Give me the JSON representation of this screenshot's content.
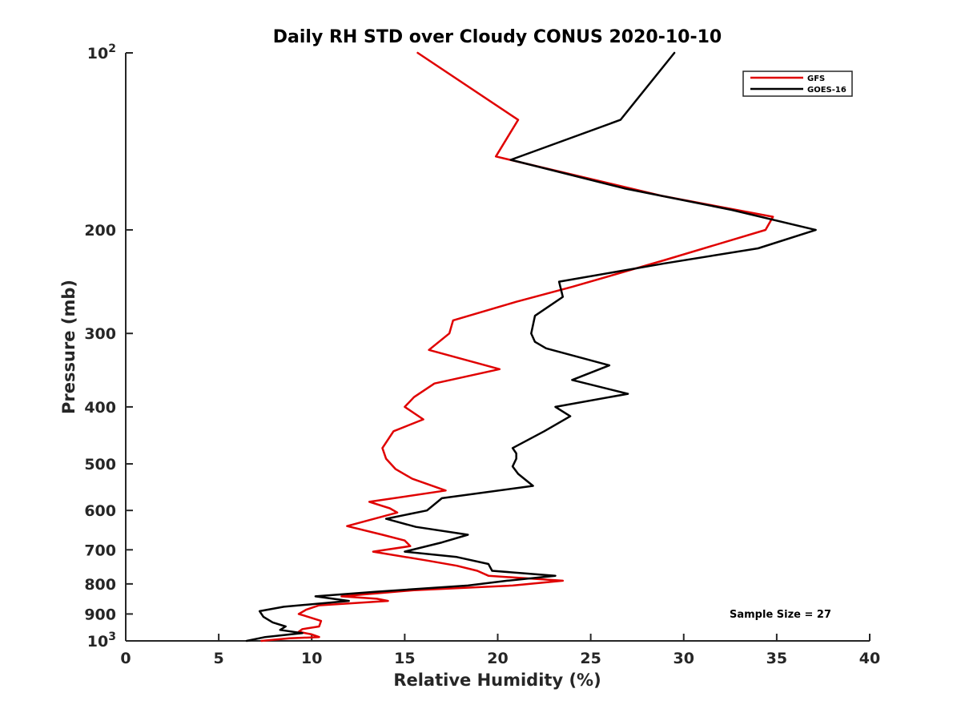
{
  "chart_data": {
    "type": "line",
    "title": "Daily RH STD over Cloudy CONUS 2020-10-10",
    "xlabel": "Relative Humidity (%)",
    "ylabel": "Pressure (mb)",
    "xlim": [
      0,
      40
    ],
    "ylim": [
      100,
      1000
    ],
    "y_scale": "log",
    "y_reversed": true,
    "grid": false,
    "legend_position": "top-right",
    "x_ticks": [
      "0",
      "5",
      "10",
      "15",
      "20",
      "25",
      "30",
      "35",
      "40"
    ],
    "y_ticks": [
      {
        "value": 100,
        "base": "10",
        "exp": "2"
      },
      {
        "value": 200,
        "label": "200"
      },
      {
        "value": 300,
        "label": "300"
      },
      {
        "value": 400,
        "label": "400"
      },
      {
        "value": 500,
        "label": "500"
      },
      {
        "value": 600,
        "label": "600"
      },
      {
        "value": 700,
        "label": "700"
      },
      {
        "value": 800,
        "label": "800"
      },
      {
        "value": 900,
        "label": "900"
      },
      {
        "value": 1000,
        "base": "10",
        "exp": "3"
      }
    ],
    "annotation": "Sample Size = 27",
    "series": [
      {
        "name": "GFS",
        "color": "#e00000",
        "points": [
          [
            15.7,
            100
          ],
          [
            21.1,
            130
          ],
          [
            19.9,
            150
          ],
          [
            28.8,
            175
          ],
          [
            34.8,
            190
          ],
          [
            34.4,
            200
          ],
          [
            29.0,
            225
          ],
          [
            24.0,
            250
          ],
          [
            21.0,
            265
          ],
          [
            17.6,
            285
          ],
          [
            17.4,
            300
          ],
          [
            16.3,
            320
          ],
          [
            20.1,
            345
          ],
          [
            16.6,
            365
          ],
          [
            15.5,
            385
          ],
          [
            15.0,
            400
          ],
          [
            16.0,
            420
          ],
          [
            14.4,
            440
          ],
          [
            13.8,
            470
          ],
          [
            14.0,
            490
          ],
          [
            14.5,
            510
          ],
          [
            15.4,
            530
          ],
          [
            17.2,
            555
          ],
          [
            13.1,
            580
          ],
          [
            14.2,
            595
          ],
          [
            14.6,
            605
          ],
          [
            11.9,
            638
          ],
          [
            13.8,
            660
          ],
          [
            15.0,
            675
          ],
          [
            15.3,
            690
          ],
          [
            13.3,
            705
          ],
          [
            16.2,
            730
          ],
          [
            17.8,
            745
          ],
          [
            18.9,
            760
          ],
          [
            19.5,
            775
          ],
          [
            23.5,
            790
          ],
          [
            20.8,
            805
          ],
          [
            15.5,
            820
          ],
          [
            11.6,
            840
          ],
          [
            13.5,
            848
          ],
          [
            14.1,
            855
          ],
          [
            10.4,
            870
          ],
          [
            9.7,
            885
          ],
          [
            9.3,
            900
          ],
          [
            9.8,
            910
          ],
          [
            10.5,
            925
          ],
          [
            10.4,
            945
          ],
          [
            9.5,
            955
          ],
          [
            9.3,
            965
          ],
          [
            10.0,
            975
          ],
          [
            10.4,
            985
          ],
          [
            8.8,
            990
          ],
          [
            7.3,
            1000
          ]
        ]
      },
      {
        "name": "GOES-16",
        "color": "#000000",
        "points": [
          [
            29.5,
            100
          ],
          [
            26.6,
            130
          ],
          [
            20.7,
            152
          ],
          [
            26.8,
            170
          ],
          [
            32.6,
            185
          ],
          [
            37.1,
            200
          ],
          [
            34.0,
            215
          ],
          [
            29.0,
            228
          ],
          [
            23.3,
            245
          ],
          [
            23.5,
            260
          ],
          [
            22.0,
            280
          ],
          [
            21.8,
            300
          ],
          [
            22.0,
            310
          ],
          [
            22.6,
            318
          ],
          [
            26.0,
            340
          ],
          [
            24.0,
            360
          ],
          [
            27.0,
            380
          ],
          [
            23.1,
            400
          ],
          [
            23.9,
            415
          ],
          [
            22.5,
            440
          ],
          [
            20.8,
            470
          ],
          [
            21.0,
            480
          ],
          [
            21.0,
            490
          ],
          [
            20.8,
            505
          ],
          [
            21.1,
            520
          ],
          [
            21.9,
            545
          ],
          [
            17.0,
            572
          ],
          [
            16.2,
            600
          ],
          [
            14.0,
            620
          ],
          [
            15.6,
            640
          ],
          [
            18.4,
            660
          ],
          [
            17.0,
            680
          ],
          [
            15.0,
            705
          ],
          [
            17.8,
            720
          ],
          [
            19.5,
            740
          ],
          [
            19.7,
            760
          ],
          [
            23.1,
            775
          ],
          [
            20.5,
            790
          ],
          [
            18.4,
            805
          ],
          [
            13.4,
            825
          ],
          [
            10.2,
            840
          ],
          [
            12.0,
            855
          ],
          [
            8.5,
            875
          ],
          [
            7.2,
            890
          ],
          [
            7.4,
            910
          ],
          [
            7.9,
            930
          ],
          [
            8.6,
            945
          ],
          [
            8.3,
            958
          ],
          [
            9.5,
            970
          ],
          [
            7.5,
            985
          ],
          [
            6.5,
            1000
          ]
        ]
      }
    ]
  }
}
